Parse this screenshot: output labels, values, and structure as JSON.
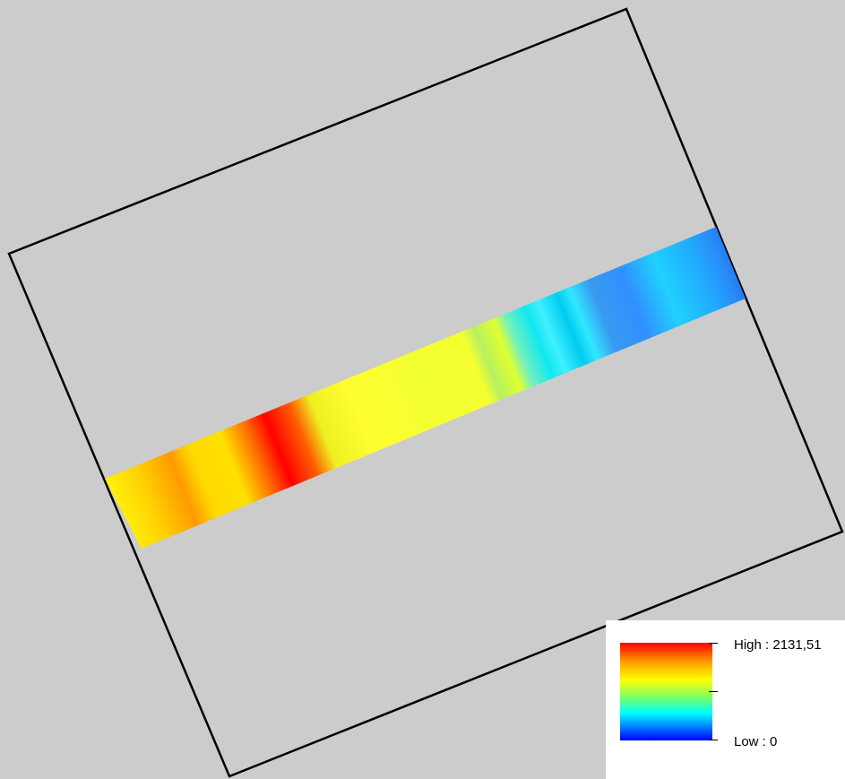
{
  "legend": {
    "high_label": "High : 2131,51",
    "low_label": "Low : 0",
    "high_value": 2131.51,
    "low_value": 0,
    "colors": [
      "#ff0000",
      "#ffa500",
      "#ffff00",
      "#7fff00",
      "#00ffff",
      "#0000ff"
    ]
  },
  "colors": {
    "background": "#cccccc",
    "frame": "#000000"
  }
}
